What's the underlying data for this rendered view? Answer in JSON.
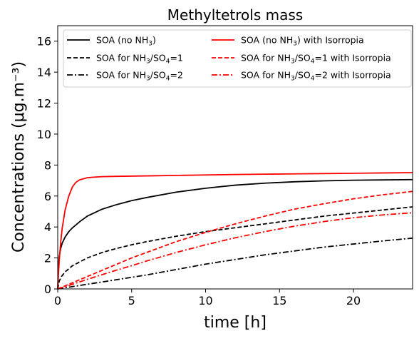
{
  "chart_data": {
    "type": "line",
    "title": "Methyltetrols mass",
    "xlabel": "time [h]",
    "ylabel": "Concentrations (μg.m⁻³)",
    "xlim": [
      0,
      24
    ],
    "ylim": [
      0,
      17
    ],
    "xticks": [
      0,
      5,
      10,
      15,
      20
    ],
    "yticks": [
      0,
      2,
      4,
      6,
      8,
      10,
      12,
      14,
      16
    ],
    "grid": false,
    "legend": {
      "placement": "top",
      "columns": 2
    },
    "series": [
      {
        "name": "SOA (no NH3)",
        "label_parts": [
          "SOA (no NH",
          "3",
          ")"
        ],
        "color": "#000000",
        "dash": "solid",
        "x": [
          0,
          0.05,
          0.1,
          0.2,
          0.3,
          0.5,
          0.75,
          1,
          1.5,
          2,
          3,
          4,
          5,
          6,
          8,
          10,
          12,
          14,
          16,
          18,
          20,
          22,
          24
        ],
        "y": [
          0,
          1.5,
          2.1,
          2.6,
          2.95,
          3.35,
          3.7,
          3.95,
          4.35,
          4.7,
          5.15,
          5.45,
          5.7,
          5.9,
          6.25,
          6.5,
          6.7,
          6.83,
          6.92,
          6.98,
          7.02,
          7.04,
          7.06
        ]
      },
      {
        "name": "SOA for NH3/SO4=1",
        "label_parts": [
          "SOA for NH",
          "3",
          "/SO",
          "4",
          "=1"
        ],
        "color": "#000000",
        "dash": "dashed",
        "x": [
          0,
          0.1,
          0.25,
          0.5,
          1,
          1.5,
          2,
          3,
          4,
          5,
          6,
          8,
          10,
          12,
          14,
          16,
          18,
          20,
          22,
          24
        ],
        "y": [
          0,
          0.5,
          0.8,
          1.1,
          1.5,
          1.75,
          2.0,
          2.35,
          2.62,
          2.85,
          3.05,
          3.4,
          3.7,
          3.95,
          4.2,
          4.45,
          4.7,
          4.9,
          5.1,
          5.3
        ]
      },
      {
        "name": "SOA for NH3/SO4=2",
        "label_parts": [
          "SOA for NH",
          "3",
          "/SO",
          "4",
          "=2"
        ],
        "color": "#000000",
        "dash": "dashdot",
        "x": [
          0,
          0.5,
          1,
          2,
          3,
          4,
          5,
          6,
          8,
          10,
          12,
          14,
          16,
          18,
          20,
          22,
          24
        ],
        "y": [
          0,
          0.08,
          0.15,
          0.3,
          0.45,
          0.6,
          0.75,
          0.9,
          1.25,
          1.6,
          1.9,
          2.2,
          2.45,
          2.7,
          2.9,
          3.1,
          3.28
        ]
      },
      {
        "name": "SOA (no NH3) with Isorropia",
        "label_parts": [
          "SOA (no NH",
          "3",
          ") with Isorropia"
        ],
        "color": "#ff0000",
        "dash": "solid",
        "x": [
          0,
          0.05,
          0.1,
          0.2,
          0.3,
          0.5,
          0.75,
          1,
          1.25,
          1.5,
          2,
          2.5,
          3,
          4,
          6,
          8,
          10,
          12,
          14,
          16,
          18,
          20,
          22,
          24
        ],
        "y": [
          0,
          1.0,
          1.8,
          3.0,
          3.9,
          5.1,
          6.0,
          6.6,
          6.9,
          7.05,
          7.18,
          7.22,
          7.25,
          7.27,
          7.3,
          7.33,
          7.36,
          7.39,
          7.41,
          7.43,
          7.45,
          7.47,
          7.49,
          7.51
        ]
      },
      {
        "name": "SOA for NH3/SO4=1 with Isorropia",
        "label_parts": [
          "SOA for NH",
          "3",
          "/SO",
          "4",
          "=1 with Isorropia"
        ],
        "color": "#ff0000",
        "dash": "dashed",
        "x": [
          0,
          0.5,
          1,
          2,
          3,
          4,
          5,
          6,
          8,
          10,
          12,
          14,
          16,
          18,
          20,
          22,
          24
        ],
        "y": [
          0,
          0.2,
          0.4,
          0.8,
          1.2,
          1.6,
          2.0,
          2.35,
          3.05,
          3.65,
          4.2,
          4.7,
          5.15,
          5.5,
          5.82,
          6.08,
          6.3
        ]
      },
      {
        "name": "SOA for NH3/SO4=2 with Isorropia",
        "label_parts": [
          "SOA for NH",
          "3",
          "/SO",
          "4",
          "=2 with Isorropia"
        ],
        "color": "#ff0000",
        "dash": "dashdot",
        "x": [
          0,
          0.5,
          1,
          2,
          3,
          4,
          5,
          6,
          8,
          10,
          12,
          14,
          16,
          18,
          20,
          22,
          24
        ],
        "y": [
          0,
          0.15,
          0.3,
          0.62,
          0.92,
          1.22,
          1.5,
          1.8,
          2.35,
          2.85,
          3.3,
          3.7,
          4.05,
          4.35,
          4.6,
          4.78,
          4.92
        ]
      }
    ]
  }
}
